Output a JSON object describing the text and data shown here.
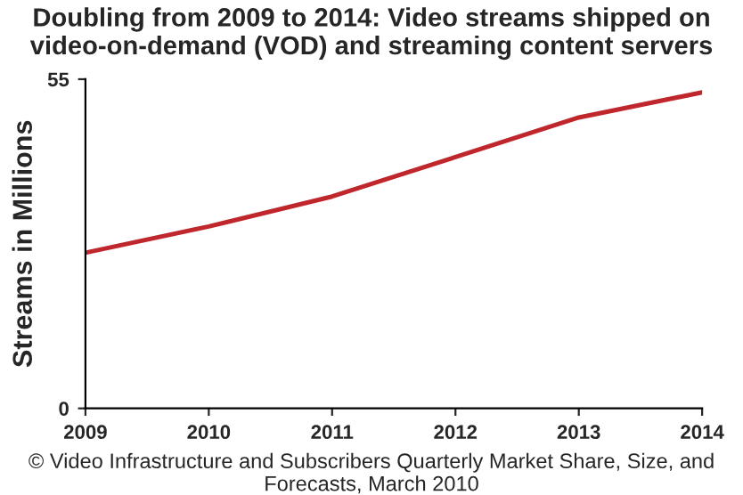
{
  "chart_data": {
    "type": "line",
    "title": "Doubling from 2009 to 2014: Video streams shipped on video-on-demand (VOD) and streaming content servers",
    "ylabel": "Streams in Millions",
    "categories": [
      "2009",
      "2010",
      "2011",
      "2012",
      "2013",
      "2014"
    ],
    "series": [
      {
        "color": "#c0272d",
        "values": [
          26.0,
          30.4,
          35.4,
          42.0,
          48.6,
          52.8
        ]
      }
    ],
    "ylim": [
      0,
      55
    ],
    "yticks": [
      0,
      55
    ],
    "grid": false,
    "line_style": "solid",
    "annotations": [
      "© Video Infrastructure and Subscribers Quarterly Market Share, Size, and Forecasts, March 2010"
    ]
  }
}
